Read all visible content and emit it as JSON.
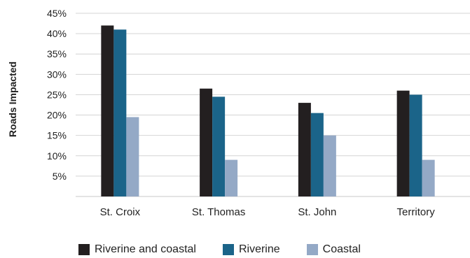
{
  "chart_data": {
    "type": "bar",
    "title": "",
    "xlabel": "",
    "ylabel": "Roads Impacted",
    "categories": [
      "St. Croix",
      "St. Thomas",
      "St. John",
      "Territory"
    ],
    "series": [
      {
        "name": "Riverine and coastal",
        "values": [
          42,
          26.5,
          23,
          26
        ],
        "color": "#231f20"
      },
      {
        "name": "Riverine",
        "values": [
          41,
          24.5,
          20.5,
          25
        ],
        "color": "#1b6489"
      },
      {
        "name": "Coastal",
        "values": [
          19.5,
          9,
          15,
          9
        ],
        "color": "#94a9c6"
      }
    ],
    "ylim": [
      0,
      45
    ],
    "yticks": [
      5,
      10,
      15,
      20,
      25,
      30,
      35,
      40,
      45
    ],
    "ytick_labels": [
      "5%",
      "10%",
      "15%",
      "20%",
      "25%",
      "30%",
      "35%",
      "40%",
      "45%"
    ],
    "grid": true,
    "legend_position": "bottom"
  }
}
